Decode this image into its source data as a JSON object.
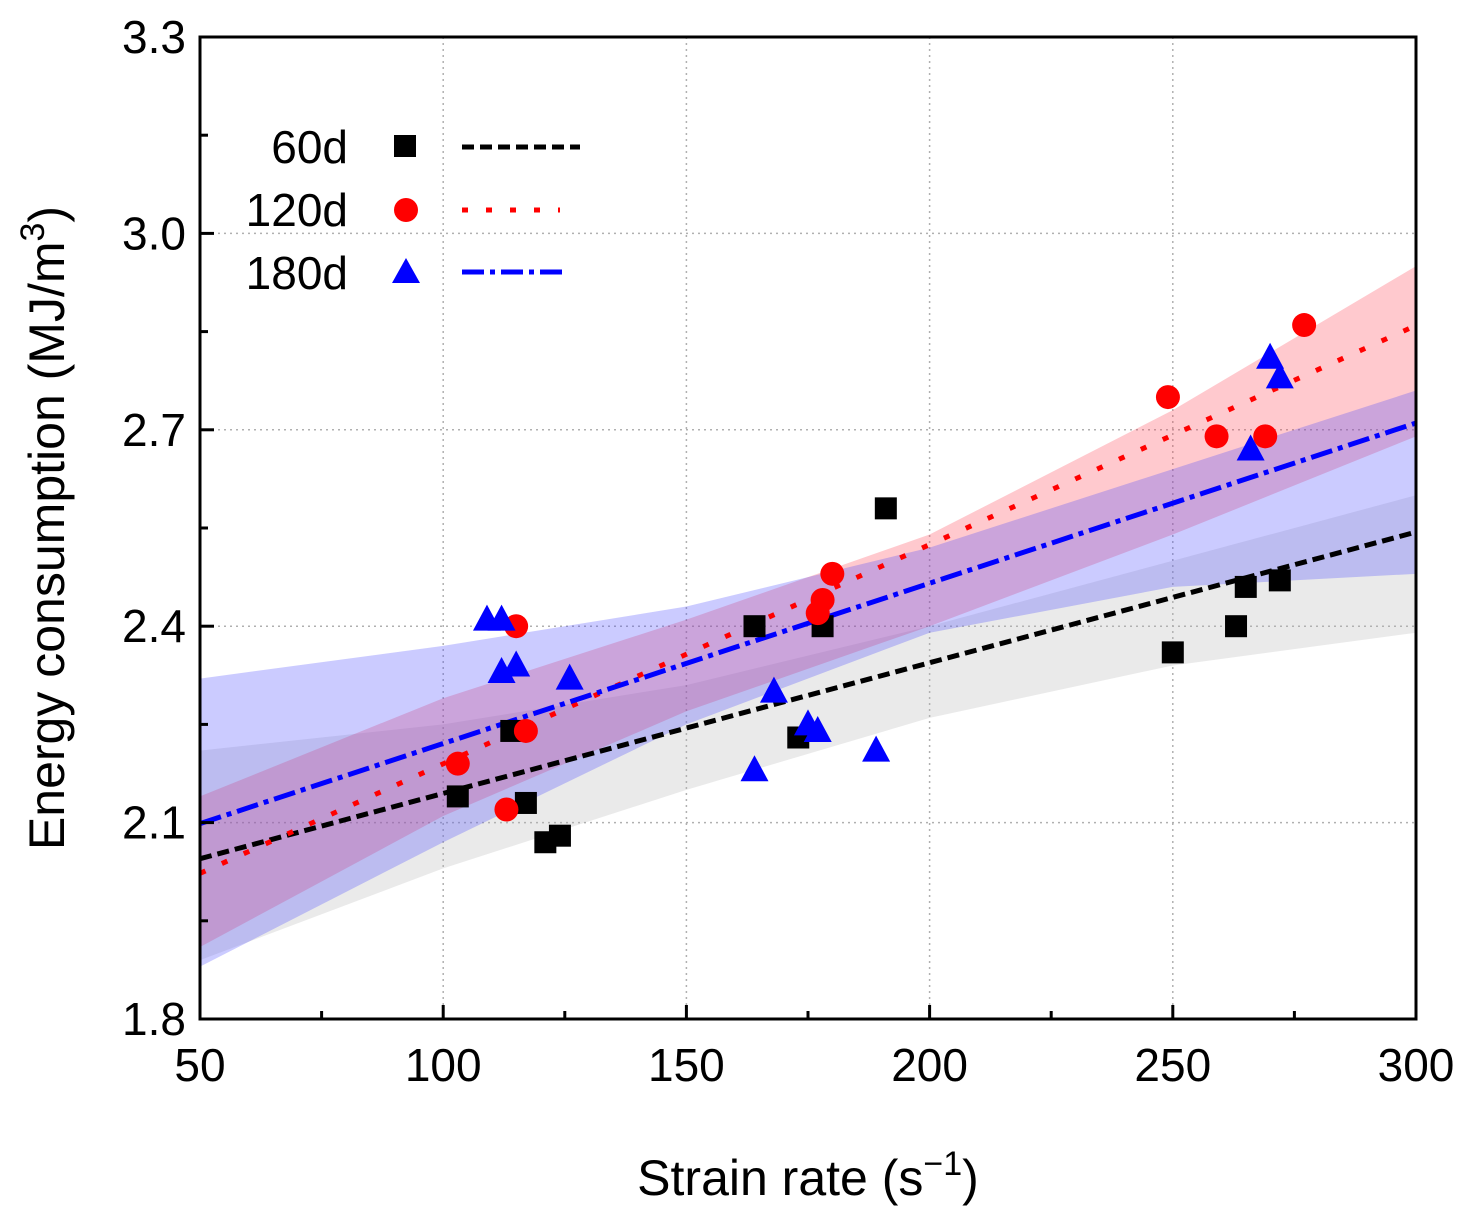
{
  "chart_data": {
    "type": "scatter",
    "title": "",
    "xlabel": "Strain rate (s",
    "xlabel_sup": "−1",
    "xlabel_end": ")",
    "ylabel": "Energy consumption (MJ/m",
    "ylabel_sup": "3",
    "ylabel_end": ")",
    "xlim": [
      50,
      300
    ],
    "ylim": [
      1.8,
      3.3
    ],
    "x_ticks": [
      "50",
      "100",
      "150",
      "200",
      "250",
      "300"
    ],
    "y_ticks": [
      "1.8",
      "2.1",
      "2.4",
      "2.7",
      "3.0",
      "3.3"
    ],
    "grid": true,
    "legend_position": "top-left",
    "series": [
      {
        "name": "60d",
        "marker": "square",
        "line_style": "dash",
        "color": "#000000",
        "band_color": "#b4b4b4",
        "points": [
          [
            103,
            2.14
          ],
          [
            114,
            2.24
          ],
          [
            117,
            2.13
          ],
          [
            121,
            2.07
          ],
          [
            124,
            2.08
          ],
          [
            164,
            2.4
          ],
          [
            173,
            2.23
          ],
          [
            178,
            2.4
          ],
          [
            191,
            2.58
          ],
          [
            250,
            2.36
          ],
          [
            263,
            2.4
          ],
          [
            265,
            2.46
          ],
          [
            272,
            2.47
          ]
        ],
        "fit": {
          "slope": 0.001996,
          "intercept": 1.945
        },
        "band": {
          "x": [
            50,
            100,
            150,
            200,
            250,
            300
          ],
          "upper": [
            2.21,
            2.25,
            2.31,
            2.4,
            2.5,
            2.6
          ],
          "lower": [
            1.89,
            2.03,
            2.15,
            2.26,
            2.34,
            2.39
          ]
        }
      },
      {
        "name": "120d",
        "marker": "circle",
        "line_style": "dot",
        "color": "#ff0000",
        "band_color": "#ff3c50",
        "points": [
          [
            103,
            2.19
          ],
          [
            113,
            2.12
          ],
          [
            115,
            2.4
          ],
          [
            117,
            2.24
          ],
          [
            177,
            2.42
          ],
          [
            178,
            2.44
          ],
          [
            180,
            2.48
          ],
          [
            249,
            2.75
          ],
          [
            259,
            2.69
          ],
          [
            269,
            2.69
          ],
          [
            277,
            2.86
          ]
        ],
        "fit": {
          "slope": 0.003348,
          "intercept": 1.855
        },
        "band": {
          "x": [
            50,
            100,
            150,
            200,
            250,
            300
          ],
          "upper": [
            2.14,
            2.29,
            2.41,
            2.54,
            2.73,
            2.95
          ],
          "lower": [
            1.91,
            2.11,
            2.27,
            2.4,
            2.54,
            2.69
          ]
        }
      },
      {
        "name": "180d",
        "marker": "triangle",
        "line_style": "dashdot",
        "color": "#0000ff",
        "band_color": "#4646ff",
        "points": [
          [
            109,
            2.41
          ],
          [
            112,
            2.41
          ],
          [
            112,
            2.33
          ],
          [
            115,
            2.34
          ],
          [
            126,
            2.32
          ],
          [
            164,
            2.18
          ],
          [
            168,
            2.3
          ],
          [
            175,
            2.25
          ],
          [
            177,
            2.24
          ],
          [
            189,
            2.21
          ],
          [
            266,
            2.67
          ],
          [
            270,
            2.81
          ],
          [
            272,
            2.78
          ]
        ],
        "fit": {
          "slope": 0.002448,
          "intercept": 1.976
        },
        "band": {
          "x": [
            50,
            100,
            150,
            200,
            250,
            300
          ],
          "upper": [
            2.32,
            2.37,
            2.43,
            2.52,
            2.64,
            2.76
          ],
          "lower": [
            1.88,
            2.07,
            2.25,
            2.39,
            2.46,
            2.48
          ]
        }
      }
    ]
  }
}
